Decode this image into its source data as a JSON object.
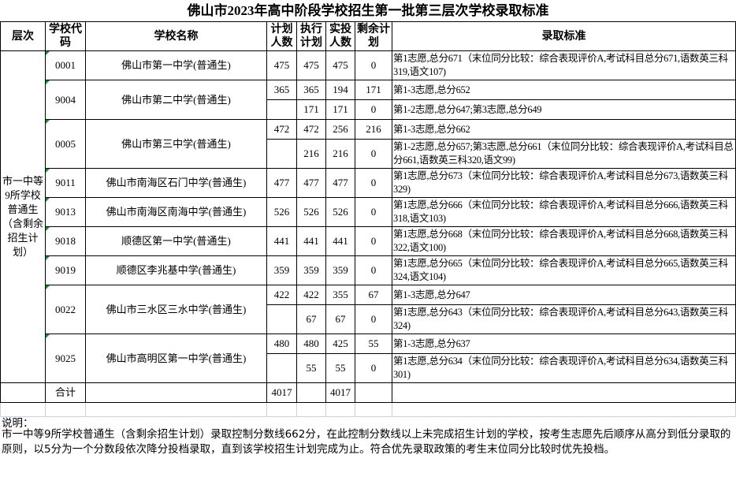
{
  "title": "佛山市2023年高中阶段学校招生第一批第三层次学校录取标准",
  "headers": {
    "level": "层次",
    "code": "学校代码",
    "name": "学校名称",
    "plan": "计划人数",
    "exec": "执行计划",
    "actual": "实投人数",
    "remain": "剩余计划",
    "criteria": "录取标准"
  },
  "level_label": "市一中等9所学校普通生（含剩余招生计划）",
  "schools": [
    {
      "code": "0001",
      "name": "佛山市第一中学(普通生)",
      "rows": [
        {
          "plan": "475",
          "exec": "475",
          "actual": "475",
          "remain": "0",
          "criteria": "第1志愿,总分671（末位同分比较：综合表现评价A,考试科目总分671,语数英三科319,语文107)"
        }
      ]
    },
    {
      "code": "9004",
      "name": "佛山市第二中学(普通生)",
      "rows": [
        {
          "plan": "365",
          "exec": "365",
          "actual": "194",
          "remain": "171",
          "criteria": "第1-3志愿,总分652"
        },
        {
          "plan": "",
          "exec": "171",
          "actual": "171",
          "remain": "0",
          "criteria": "第1-2志愿,总分647;第3志愿,总分649"
        }
      ]
    },
    {
      "code": "0005",
      "name": "佛山市第三中学(普通生)",
      "rows": [
        {
          "plan": "472",
          "exec": "472",
          "actual": "256",
          "remain": "216",
          "criteria": "第1-3志愿,总分662"
        },
        {
          "plan": "",
          "exec": "216",
          "actual": "216",
          "remain": "0",
          "criteria": "第1-2志愿,总分657;第3志愿,总分661（末位同分比较：综合表现评价A,考试科目总分661,语数英三科320,语文99)"
        }
      ]
    },
    {
      "code": "9011",
      "name": "佛山市南海区石门中学(普通生)",
      "rows": [
        {
          "plan": "477",
          "exec": "477",
          "actual": "477",
          "remain": "0",
          "criteria": "第1志愿,总分673（末位同分比较：综合表现评价A,考试科目总分673,语数英三科329)"
        }
      ]
    },
    {
      "code": "9013",
      "name": "佛山市南海区南海中学(普通生)",
      "rows": [
        {
          "plan": "526",
          "exec": "526",
          "actual": "526",
          "remain": "0",
          "criteria": "第1志愿,总分666（末位同分比较：综合表现评价A,考试科目总分666,语数英三科318,语文103)"
        }
      ]
    },
    {
      "code": "9018",
      "name": "顺德区第一中学(普通生)",
      "rows": [
        {
          "plan": "441",
          "exec": "441",
          "actual": "441",
          "remain": "0",
          "criteria": "第1志愿,总分668（末位同分比较：综合表现评价A,考试科目总分668,语数英三科322,语文100)"
        }
      ]
    },
    {
      "code": "9019",
      "name": "顺德区李兆基中学(普通生)",
      "rows": [
        {
          "plan": "359",
          "exec": "359",
          "actual": "359",
          "remain": "0",
          "criteria": "第1志愿,总分665（末位同分比较：综合表现评价A,考试科目总分665,语数英三科324,语文104)"
        }
      ]
    },
    {
      "code": "0022",
      "name": "佛山市三水区三水中学(普通生)",
      "rows": [
        {
          "plan": "422",
          "exec": "422",
          "actual": "355",
          "remain": "67",
          "criteria": "第1-3志愿,总分647"
        },
        {
          "plan": "",
          "exec": "67",
          "actual": "67",
          "remain": "0",
          "criteria": "第1志愿,总分643（末位同分比较：综合表现评价A,考试科目总分643,语数英三科324)"
        }
      ]
    },
    {
      "code": "9025",
      "name": "佛山市高明区第一中学(普通生)",
      "rows": [
        {
          "plan": "480",
          "exec": "480",
          "actual": "425",
          "remain": "55",
          "criteria": "第1-3志愿,总分637"
        },
        {
          "plan": "",
          "exec": "55",
          "actual": "55",
          "remain": "0",
          "criteria": "第1志愿,总分634（末位同分比较：综合表现评价A,考试科目总分634,语数英三科301)"
        }
      ]
    }
  ],
  "total": {
    "label": "合计",
    "plan": "4017",
    "exec": "",
    "actual": "4017",
    "remain": ""
  },
  "note_label": "说明：",
  "note": "市一中等9所学校普通生（含剩余招生计划）录取控制分数线662分，在此控制分数线以上未完成招生计划的学校，按考生志愿先后顺序从高分到低分录取的原则，以5分为一个分数段依次降分投档录取，直到该学校招生计划完成为止。符合优先录取政策的考生末位同分比较时优先投档。",
  "colors": {
    "cell_marker": "#1b8a2a",
    "grid": "#c9d3df"
  }
}
